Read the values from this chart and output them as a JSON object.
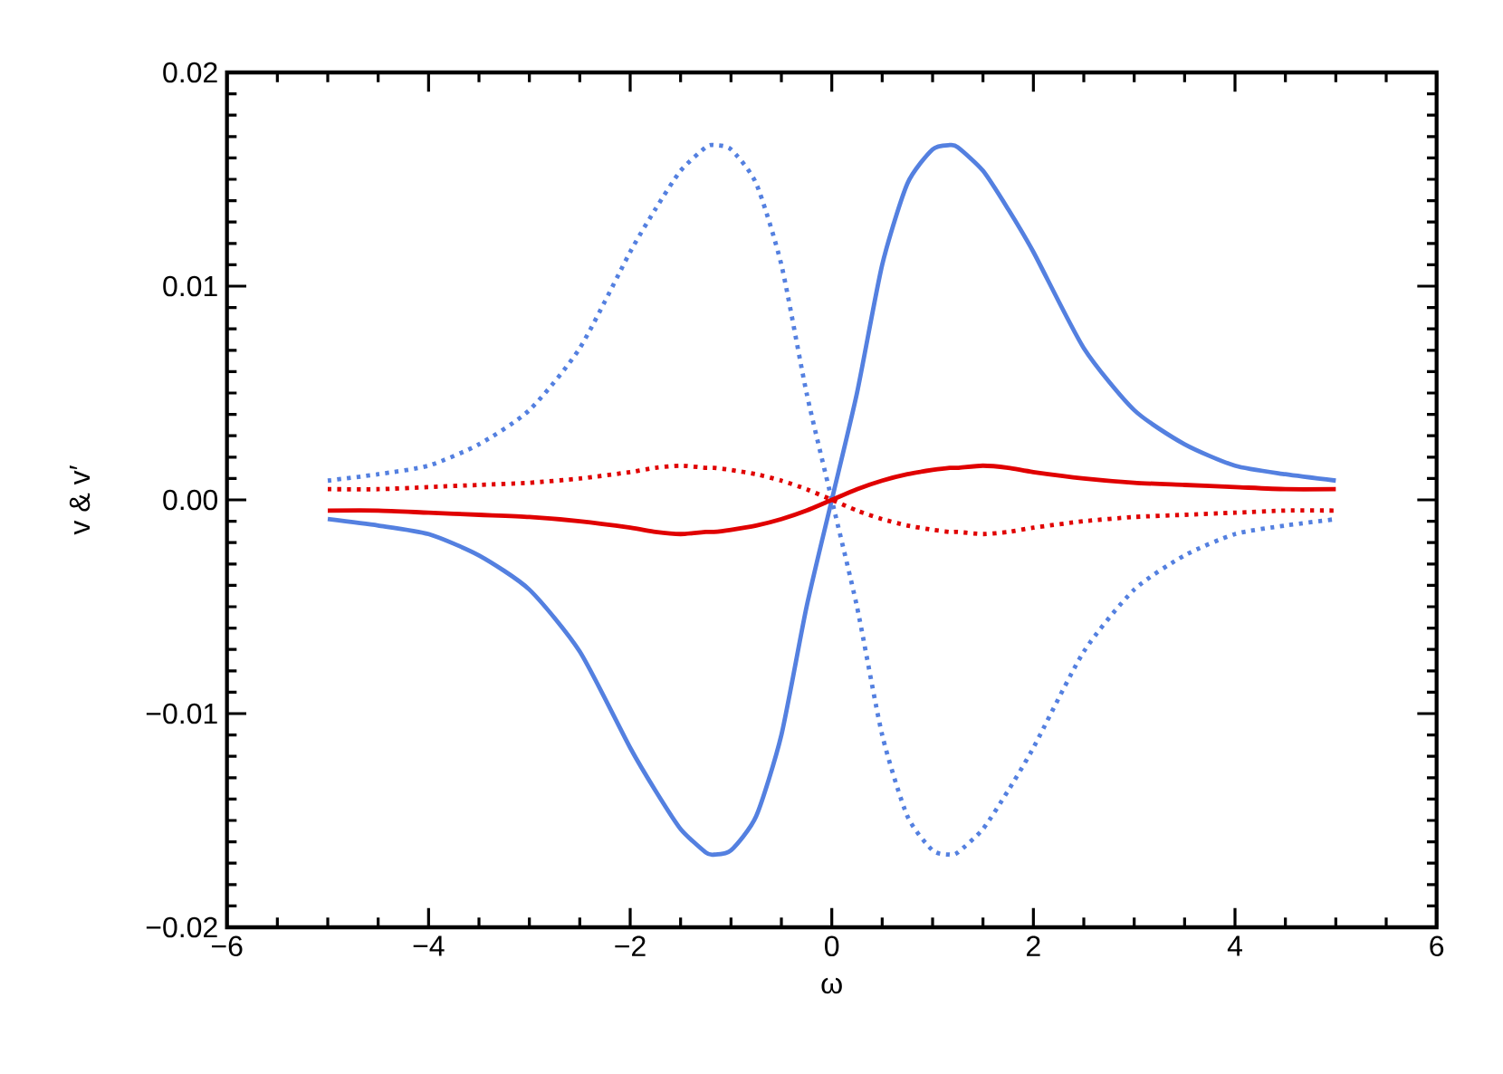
{
  "chart_data": {
    "type": "line",
    "xlabel": "ω",
    "ylabel": "v & v′",
    "x": [
      -5,
      -4.5,
      -4,
      -3.5,
      -3,
      -2.5,
      -2,
      -1.75,
      -1.5,
      -1.25,
      -1.17,
      -1,
      -0.75,
      -0.5,
      -0.25,
      0,
      0.25,
      0.5,
      0.75,
      1,
      1.17,
      1.25,
      1.5,
      1.75,
      2,
      2.5,
      3,
      3.5,
      4,
      4.5,
      5
    ],
    "series": [
      {
        "color": "#5480e0",
        "line_style": "solid",
        "values": [
          -0.0009,
          -0.0012,
          -0.0016,
          -0.0026,
          -0.0042,
          -0.0071,
          -0.0116,
          -0.0136,
          -0.0154,
          -0.0165,
          -0.0166,
          -0.0164,
          -0.0148,
          -0.011,
          -0.005,
          0,
          0.005,
          0.011,
          0.0148,
          0.0164,
          0.0166,
          0.0165,
          0.0154,
          0.0136,
          0.0116,
          0.0071,
          0.0042,
          0.0026,
          0.0016,
          0.0012,
          0.0009
        ]
      },
      {
        "color": "#5480e0",
        "line_style": "dotted",
        "values": [
          0.0009,
          0.0012,
          0.0016,
          0.0026,
          0.0042,
          0.0071,
          0.0116,
          0.0136,
          0.0154,
          0.0165,
          0.0166,
          0.0164,
          0.0148,
          0.011,
          0.005,
          0,
          -0.005,
          -0.011,
          -0.0148,
          -0.0164,
          -0.0166,
          -0.0165,
          -0.0154,
          -0.0136,
          -0.0116,
          -0.0071,
          -0.0042,
          -0.0026,
          -0.0016,
          -0.0012,
          -0.0009
        ]
      },
      {
        "color": "#e00000",
        "line_style": "solid",
        "values": [
          -0.0005,
          -0.0005,
          -0.0006,
          -0.0007,
          -0.0008,
          -0.001,
          -0.0013,
          -0.0015,
          -0.0016,
          -0.0015,
          -0.0015,
          -0.0014,
          -0.0012,
          -0.0009,
          -0.0005,
          0,
          0.0005,
          0.0009,
          0.0012,
          0.0014,
          0.0015,
          0.0015,
          0.0016,
          0.0015,
          0.0013,
          0.001,
          0.0008,
          0.0007,
          0.0006,
          0.0005,
          0.0005
        ]
      },
      {
        "color": "#e00000",
        "line_style": "dotted",
        "values": [
          0.0005,
          0.0005,
          0.0006,
          0.0007,
          0.0008,
          0.001,
          0.0013,
          0.0015,
          0.0016,
          0.0015,
          0.0015,
          0.0014,
          0.0012,
          0.0009,
          0.0005,
          0,
          -0.0005,
          -0.0009,
          -0.0012,
          -0.0014,
          -0.0015,
          -0.0015,
          -0.0016,
          -0.0015,
          -0.0013,
          -0.001,
          -0.0008,
          -0.0007,
          -0.0006,
          -0.0005,
          -0.0005
        ]
      }
    ],
    "xlim": [
      -6,
      6
    ],
    "xticks": [
      {
        "value": -6,
        "label": "−6"
      },
      {
        "value": -4,
        "label": "−4"
      },
      {
        "value": -2,
        "label": "−2"
      },
      0,
      2,
      4,
      6
    ],
    "ylim": [
      -0.02,
      0.02
    ],
    "yticks": [
      {
        "value": -0.02,
        "label": "−0.02"
      },
      {
        "value": -0.01,
        "label": "−0.01"
      },
      {
        "value": 0,
        "label": "0.00"
      },
      0.01,
      0.02
    ],
    "grid": false,
    "marker": "none"
  }
}
